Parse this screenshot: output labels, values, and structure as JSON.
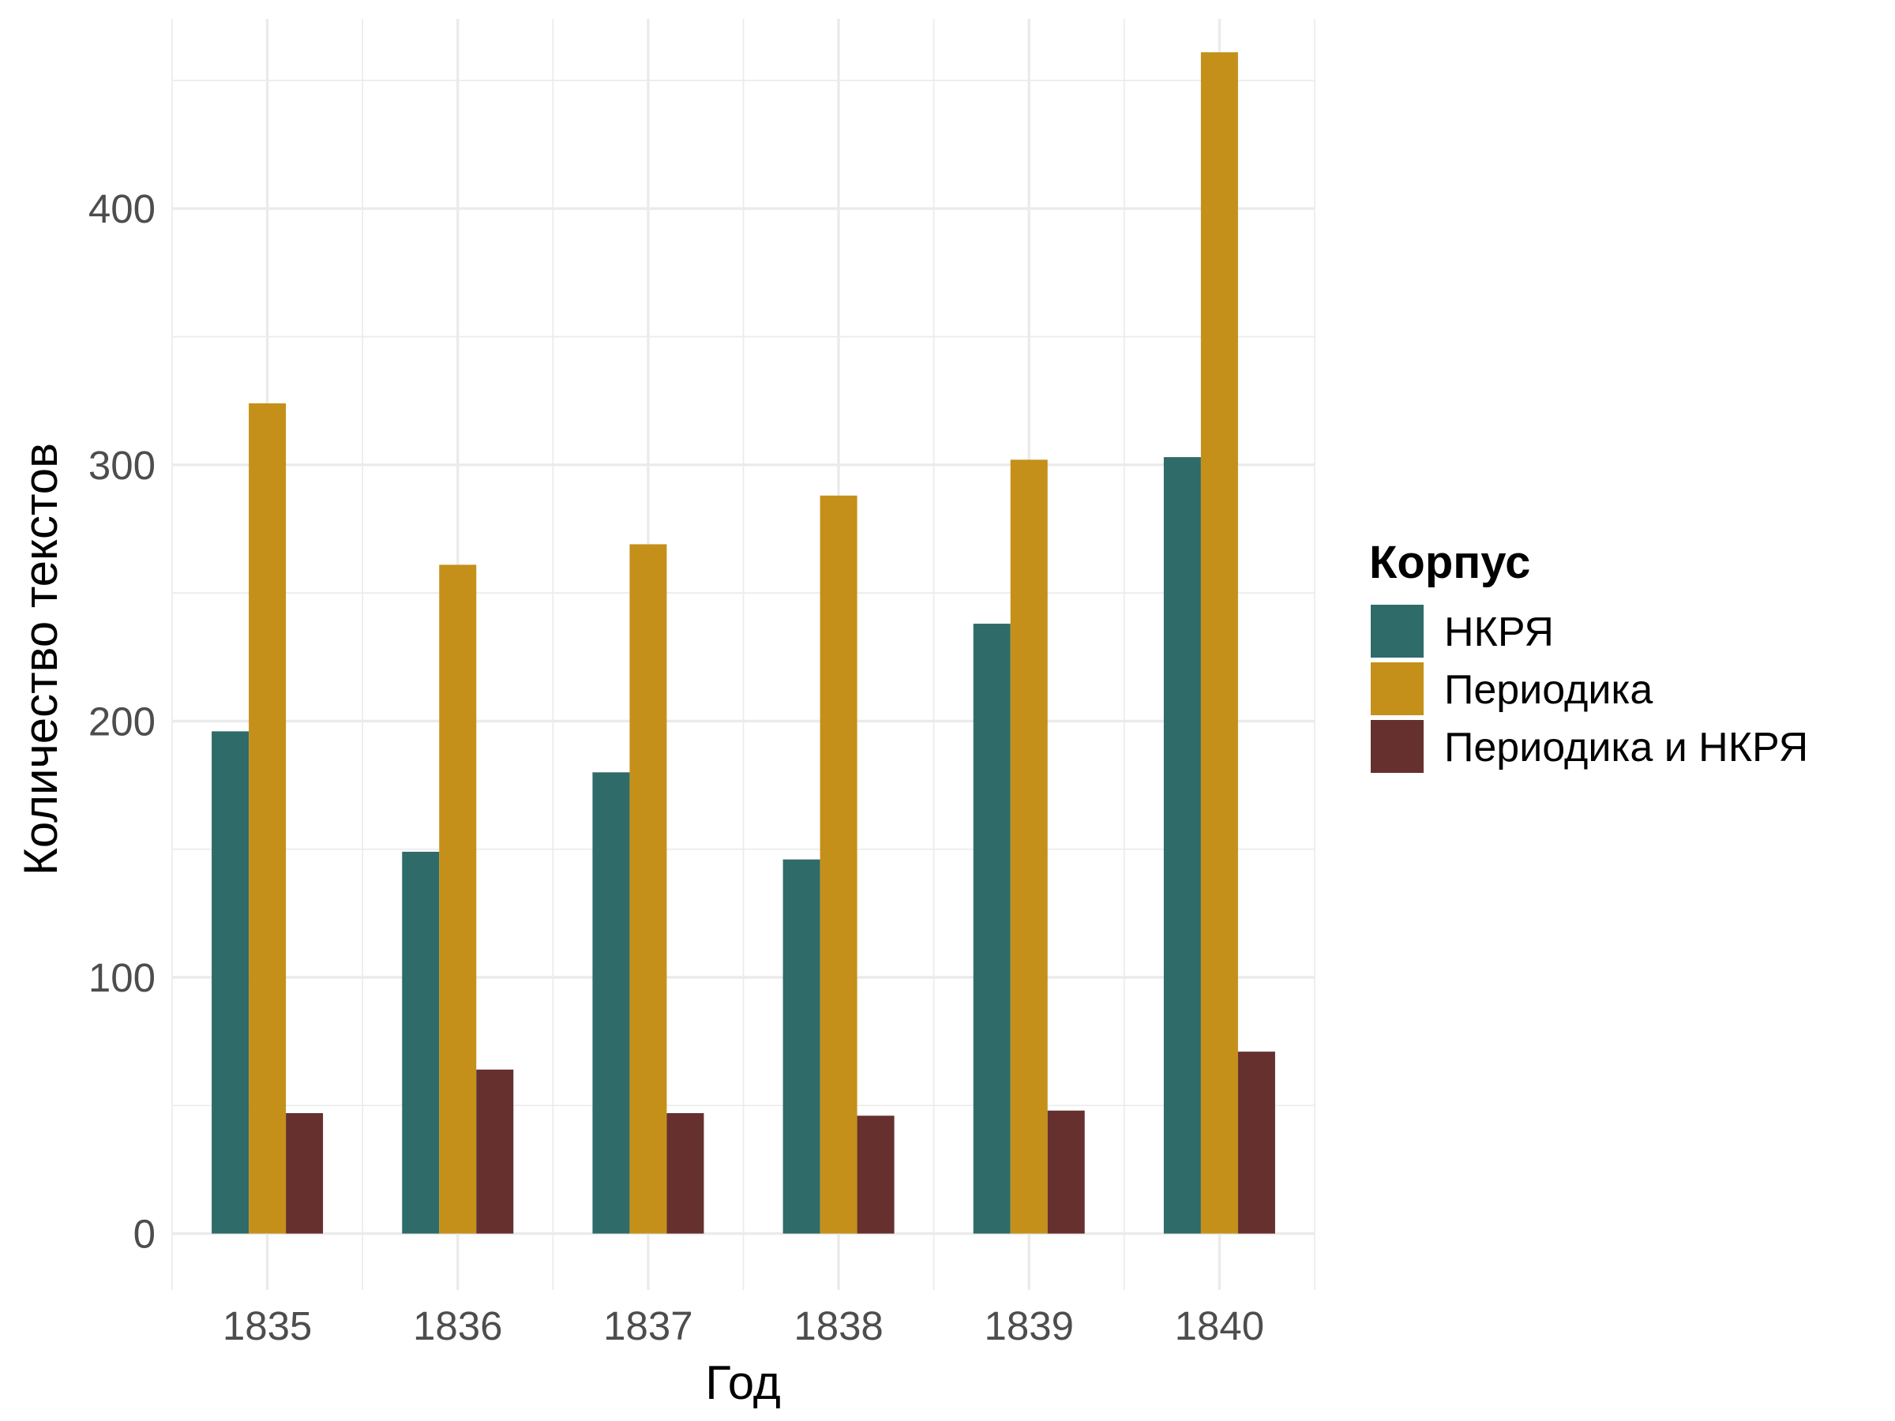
{
  "chart_data": {
    "type": "bar",
    "title": "",
    "xlabel": "Год",
    "ylabel": "Количество текстов",
    "categories": [
      "1835",
      "1836",
      "1837",
      "1838",
      "1839",
      "1840"
    ],
    "series": [
      {
        "name": "НКРЯ",
        "color": "#2e6b69",
        "values": [
          196,
          149,
          180,
          146,
          238,
          303
        ]
      },
      {
        "name": "Периодика",
        "color": "#c4901a",
        "values": [
          324,
          261,
          269,
          288,
          302,
          461
        ]
      },
      {
        "name": "Периодика и НКРЯ",
        "color": "#66302f",
        "values": [
          47,
          64,
          47,
          46,
          48,
          71
        ]
      }
    ],
    "ylim": [
      -22,
      474
    ],
    "yticks": [
      0,
      100,
      200,
      300,
      400
    ],
    "ytick_labels": [
      "0",
      "100",
      "200",
      "300",
      "400"
    ],
    "grid": true,
    "legend": {
      "title": "Корпус",
      "position": "right"
    }
  }
}
